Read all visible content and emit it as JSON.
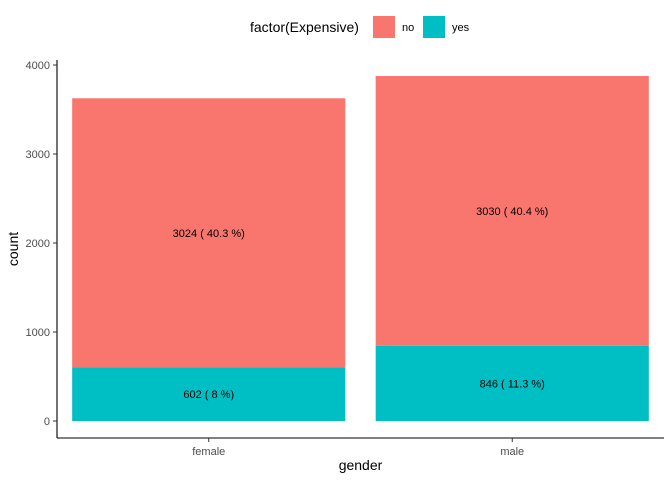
{
  "chart_data": {
    "type": "bar",
    "stacked": true,
    "categories": [
      "female",
      "male"
    ],
    "series": [
      {
        "name": "no",
        "color": "#F8766D",
        "values": [
          3024,
          3030
        ],
        "labels": [
          "3024 ( 40.3 %)",
          "3030 ( 40.4 %)"
        ]
      },
      {
        "name": "yes",
        "color": "#00BFC4",
        "values": [
          602,
          846
        ],
        "labels": [
          "602 ( 8 %)",
          "846 ( 11.3 %)"
        ]
      }
    ],
    "xlabel": "gender",
    "ylabel": "count",
    "ylim": [
      0,
      4000
    ],
    "yticks": [
      0,
      1000,
      2000,
      3000,
      4000
    ],
    "legend": {
      "title": "factor(Expensive)",
      "position": "top"
    },
    "grid": false
  }
}
